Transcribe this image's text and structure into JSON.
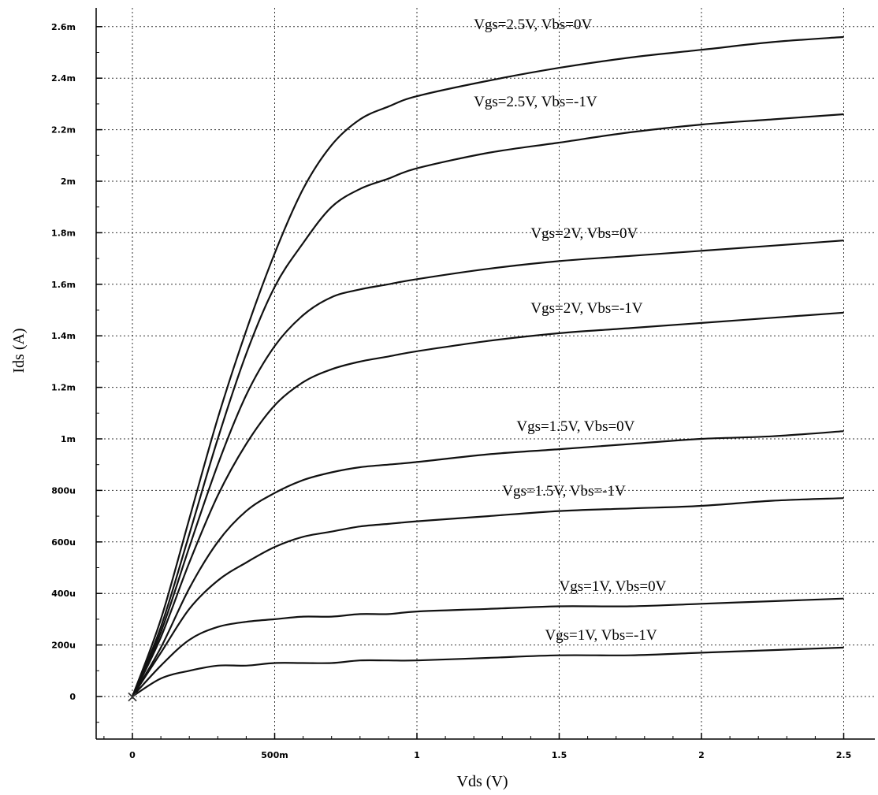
{
  "chart_data": {
    "type": "line",
    "xlabel": "Vds (V)",
    "ylabel": "Ids (A)",
    "xlim": [
      -0.12,
      2.6
    ],
    "ylim": [
      -0.00014,
      0.00265
    ],
    "grid": true,
    "x_ticks": [
      {
        "value": 0,
        "label": "0"
      },
      {
        "value": 0.5,
        "label": "500m"
      },
      {
        "value": 1,
        "label": "1"
      },
      {
        "value": 1.5,
        "label": "1.5"
      },
      {
        "value": 2,
        "label": "2"
      },
      {
        "value": 2.5,
        "label": "2.5"
      }
    ],
    "y_ticks": [
      {
        "value": 0,
        "label": "0"
      },
      {
        "value": 0.0002,
        "label": "200u"
      },
      {
        "value": 0.0004,
        "label": "400u"
      },
      {
        "value": 0.0006,
        "label": "600u"
      },
      {
        "value": 0.0008,
        "label": "800u"
      },
      {
        "value": 0.001,
        "label": "1m"
      },
      {
        "value": 0.0012,
        "label": "1.2m"
      },
      {
        "value": 0.0014,
        "label": "1.4m"
      },
      {
        "value": 0.0016,
        "label": "1.6m"
      },
      {
        "value": 0.0018,
        "label": "1.8m"
      },
      {
        "value": 0.002,
        "label": "2m"
      },
      {
        "value": 0.0022,
        "label": "2.2m"
      },
      {
        "value": 0.0024,
        "label": "2.4m"
      },
      {
        "value": 0.0026,
        "label": "2.6m"
      }
    ],
    "origin_marker": {
      "x": 0,
      "y": 0,
      "symbol": "×"
    },
    "series": [
      {
        "name": "Vgs=2.5V, Vbs=0V",
        "label_at": [
          1.2,
          0.00259
        ],
        "points": [
          [
            0,
            0
          ],
          [
            0.1,
            0.0003
          ],
          [
            0.2,
            0.00069
          ],
          [
            0.3,
            0.00108
          ],
          [
            0.4,
            0.00142
          ],
          [
            0.5,
            0.00172
          ],
          [
            0.6,
            0.00197
          ],
          [
            0.7,
            0.00214
          ],
          [
            0.8,
            0.00224
          ],
          [
            0.9,
            0.00229
          ],
          [
            1.0,
            0.00233
          ],
          [
            1.25,
            0.00239
          ],
          [
            1.5,
            0.00244
          ],
          [
            1.75,
            0.00248
          ],
          [
            2.0,
            0.00251
          ],
          [
            2.25,
            0.00254
          ],
          [
            2.5,
            0.00256
          ]
        ]
      },
      {
        "name": "Vgs=2.5V, Vbs=-1V",
        "label_at": [
          1.2,
          0.00229
        ],
        "points": [
          [
            0,
            0
          ],
          [
            0.1,
            0.00027
          ],
          [
            0.2,
            0.00063
          ],
          [
            0.3,
            0.001
          ],
          [
            0.4,
            0.00133
          ],
          [
            0.5,
            0.00159
          ],
          [
            0.6,
            0.00176
          ],
          [
            0.7,
            0.0019
          ],
          [
            0.8,
            0.00197
          ],
          [
            0.9,
            0.00201
          ],
          [
            1.0,
            0.00205
          ],
          [
            1.25,
            0.00211
          ],
          [
            1.5,
            0.00215
          ],
          [
            1.75,
            0.00219
          ],
          [
            2.0,
            0.00222
          ],
          [
            2.25,
            0.00224
          ],
          [
            2.5,
            0.00226
          ]
        ]
      },
      {
        "name": "Vgs=2V, Vbs=0V",
        "label_at": [
          1.4,
          0.00178
        ],
        "points": [
          [
            0,
            0
          ],
          [
            0.1,
            0.00025
          ],
          [
            0.2,
            0.00058
          ],
          [
            0.3,
            0.0009
          ],
          [
            0.4,
            0.00117
          ],
          [
            0.5,
            0.00136
          ],
          [
            0.6,
            0.00148
          ],
          [
            0.7,
            0.00155
          ],
          [
            0.8,
            0.00158
          ],
          [
            0.9,
            0.0016
          ],
          [
            1.0,
            0.00162
          ],
          [
            1.25,
            0.00166
          ],
          [
            1.5,
            0.00169
          ],
          [
            1.75,
            0.00171
          ],
          [
            2.0,
            0.00173
          ],
          [
            2.25,
            0.00175
          ],
          [
            2.5,
            0.00177
          ]
        ]
      },
      {
        "name": "Vgs=2V, Vbs=-1V",
        "label_at": [
          1.4,
          0.00149
        ],
        "points": [
          [
            0,
            0
          ],
          [
            0.1,
            0.00023
          ],
          [
            0.2,
            0.00052
          ],
          [
            0.3,
            0.00078
          ],
          [
            0.4,
            0.00098
          ],
          [
            0.5,
            0.00113
          ],
          [
            0.6,
            0.00122
          ],
          [
            0.7,
            0.00127
          ],
          [
            0.8,
            0.0013
          ],
          [
            0.9,
            0.00132
          ],
          [
            1.0,
            0.00134
          ],
          [
            1.25,
            0.00138
          ],
          [
            1.5,
            0.00141
          ],
          [
            1.75,
            0.00143
          ],
          [
            2.0,
            0.00145
          ],
          [
            2.25,
            0.00147
          ],
          [
            2.5,
            0.00149
          ]
        ]
      },
      {
        "name": "Vgs=1.5V, Vbs=0V",
        "label_at": [
          1.35,
          0.00103
        ],
        "points": [
          [
            0,
            0
          ],
          [
            0.1,
            0.00019
          ],
          [
            0.2,
            0.00042
          ],
          [
            0.3,
            0.0006
          ],
          [
            0.4,
            0.00072
          ],
          [
            0.5,
            0.00079
          ],
          [
            0.6,
            0.00084
          ],
          [
            0.7,
            0.00087
          ],
          [
            0.8,
            0.00089
          ],
          [
            0.9,
            0.0009
          ],
          [
            1.0,
            0.00091
          ],
          [
            1.25,
            0.00094
          ],
          [
            1.5,
            0.00096
          ],
          [
            1.75,
            0.00098
          ],
          [
            2.0,
            0.001
          ],
          [
            2.25,
            0.00101
          ],
          [
            2.5,
            0.00103
          ]
        ]
      },
      {
        "name": "Vgs=1.5V, Vbs=-1V",
        "label_at": [
          1.3,
          0.00078
        ],
        "points": [
          [
            0,
            0
          ],
          [
            0.1,
            0.00017
          ],
          [
            0.2,
            0.00034
          ],
          [
            0.3,
            0.00045
          ],
          [
            0.4,
            0.00052
          ],
          [
            0.5,
            0.00058
          ],
          [
            0.6,
            0.00062
          ],
          [
            0.7,
            0.00064
          ],
          [
            0.8,
            0.00066
          ],
          [
            0.9,
            0.00067
          ],
          [
            1.0,
            0.00068
          ],
          [
            1.25,
            0.0007
          ],
          [
            1.5,
            0.00072
          ],
          [
            1.75,
            0.00073
          ],
          [
            2.0,
            0.00074
          ],
          [
            2.25,
            0.00076
          ],
          [
            2.5,
            0.00077
          ]
        ]
      },
      {
        "name": "Vgs=1V, Vbs=0V",
        "label_at": [
          1.5,
          0.00041
        ],
        "points": [
          [
            0,
            0
          ],
          [
            0.1,
            0.00012
          ],
          [
            0.2,
            0.00022
          ],
          [
            0.3,
            0.00027
          ],
          [
            0.4,
            0.00029
          ],
          [
            0.5,
            0.0003
          ],
          [
            0.6,
            0.00031
          ],
          [
            0.7,
            0.00031
          ],
          [
            0.8,
            0.00032
          ],
          [
            0.9,
            0.00032
          ],
          [
            1.0,
            0.00033
          ],
          [
            1.25,
            0.00034
          ],
          [
            1.5,
            0.00035
          ],
          [
            1.75,
            0.00035
          ],
          [
            2.0,
            0.00036
          ],
          [
            2.25,
            0.00037
          ],
          [
            2.5,
            0.00038
          ]
        ]
      },
      {
        "name": "Vgs=1V, Vbs=-1V",
        "label_at": [
          1.45,
          0.00022
        ],
        "points": [
          [
            0,
            0
          ],
          [
            0.1,
            7e-05
          ],
          [
            0.2,
            0.0001
          ],
          [
            0.3,
            0.00012
          ],
          [
            0.4,
            0.00012
          ],
          [
            0.5,
            0.00013
          ],
          [
            0.6,
            0.00013
          ],
          [
            0.7,
            0.00013
          ],
          [
            0.8,
            0.00014
          ],
          [
            0.9,
            0.00014
          ],
          [
            1.0,
            0.00014
          ],
          [
            1.25,
            0.00015
          ],
          [
            1.5,
            0.00016
          ],
          [
            1.75,
            0.00016
          ],
          [
            2.0,
            0.00017
          ],
          [
            2.25,
            0.00018
          ],
          [
            2.5,
            0.00019
          ]
        ]
      }
    ]
  }
}
